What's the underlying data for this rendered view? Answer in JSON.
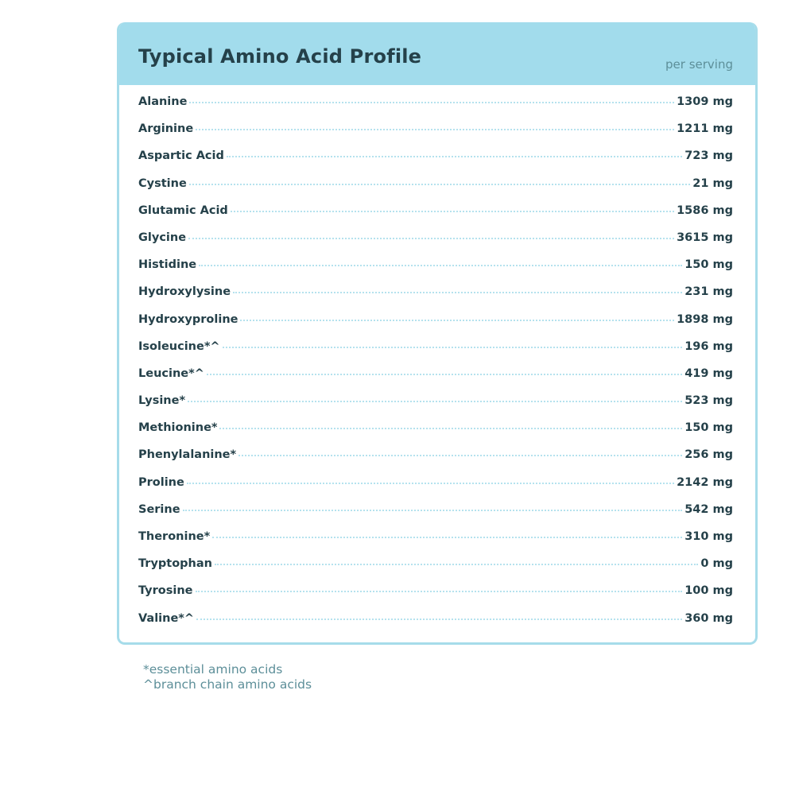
{
  "header": {
    "title": "Typical Amino Acid Profile",
    "subtitle": "per serving"
  },
  "colors": {
    "header_bg": "#a2dcec",
    "text": "#25414a",
    "muted": "#5d8f99"
  },
  "rows": [
    {
      "name": "Alanine",
      "value": "1309 mg"
    },
    {
      "name": "Arginine",
      "value": "1211 mg"
    },
    {
      "name": "Aspartic Acid",
      "value": "723 mg"
    },
    {
      "name": "Cystine",
      "value": "21 mg"
    },
    {
      "name": "Glutamic Acid",
      "value": "1586 mg"
    },
    {
      "name": "Glycine",
      "value": "3615 mg"
    },
    {
      "name": "Histidine",
      "value": "150 mg"
    },
    {
      "name": "Hydroxylysine",
      "value": "231 mg"
    },
    {
      "name": "Hydroxyproline",
      "value": "1898 mg"
    },
    {
      "name": "Isoleucine*^",
      "value": "196 mg"
    },
    {
      "name": "Leucine*^",
      "value": "419 mg"
    },
    {
      "name": "Lysine*",
      "value": "523 mg"
    },
    {
      "name": "Methionine*",
      "value": "150 mg"
    },
    {
      "name": "Phenylalanine*",
      "value": "256 mg"
    },
    {
      "name": "Proline",
      "value": "2142 mg"
    },
    {
      "name": "Serine",
      "value": "542 mg"
    },
    {
      "name": "Theronine*",
      "value": "310 mg"
    },
    {
      "name": "Tryptophan",
      "value": "0 mg"
    },
    {
      "name": "Tyrosine",
      "value": "100 mg"
    },
    {
      "name": "Valine*^",
      "value": "360 mg"
    }
  ],
  "footnotes": [
    "*essential amino acids",
    "^branch chain amino acids"
  ]
}
